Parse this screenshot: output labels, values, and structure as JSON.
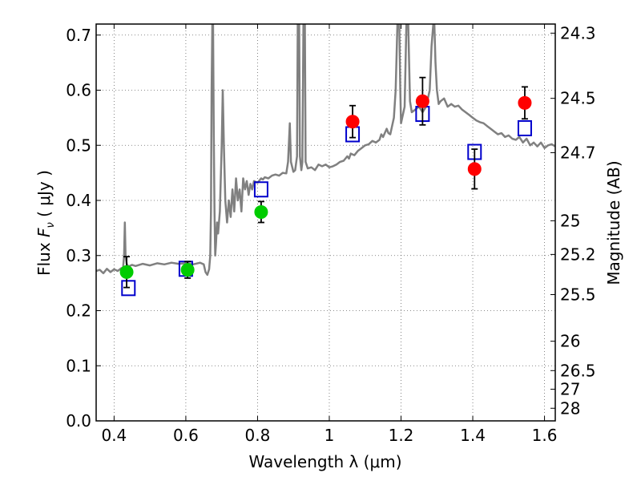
{
  "chart_data": {
    "type": "scatter",
    "xlabel": "Wavelength  λ (μm)",
    "ylabel": "Flux  F_ν  ( μJy )",
    "y2label": "Magnitude (AB)",
    "xlim": [
      0.35,
      1.63
    ],
    "ylim": [
      0.0,
      0.72
    ],
    "grid": true,
    "x_ticks": [
      0.4,
      0.6,
      0.8,
      1.0,
      1.2,
      1.4,
      1.6
    ],
    "x_tick_labels": [
      "0.4",
      "0.6",
      "0.8",
      "1",
      "1.2",
      "1.4",
      "1.6"
    ],
    "y_ticks": [
      0.0,
      0.1,
      0.2,
      0.3,
      0.4,
      0.5,
      0.6,
      0.7
    ],
    "y_tick_labels": [
      "0.0",
      "0.1",
      "0.2",
      "0.3",
      "0.4",
      "0.5",
      "0.6",
      "0.7"
    ],
    "y2_ticks": [
      {
        "flux": 0.7035,
        "label": "24.3"
      },
      {
        "flux": 0.5852,
        "label": "24.5"
      },
      {
        "flux": 0.4866,
        "label": "24.7"
      },
      {
        "flux": 0.3631,
        "label": "25"
      },
      {
        "flux": 0.302,
        "label": "25.2"
      },
      {
        "flux": 0.2291,
        "label": "25.5"
      },
      {
        "flux": 0.1445,
        "label": "26"
      },
      {
        "flux": 0.0912,
        "label": "26.5"
      },
      {
        "flux": 0.0575,
        "label": "27"
      },
      {
        "flux": 0.0229,
        "label": "28"
      }
    ],
    "series": [
      {
        "kind": "spectrum",
        "color": "#808080",
        "points": [
          [
            0.35,
            0.272
          ],
          [
            0.36,
            0.274
          ],
          [
            0.37,
            0.268
          ],
          [
            0.38,
            0.276
          ],
          [
            0.39,
            0.27
          ],
          [
            0.4,
            0.275
          ],
          [
            0.41,
            0.272
          ],
          [
            0.42,
            0.277
          ],
          [
            0.425,
            0.278
          ],
          [
            0.428,
            0.3
          ],
          [
            0.43,
            0.36
          ],
          [
            0.432,
            0.3
          ],
          [
            0.435,
            0.285
          ],
          [
            0.44,
            0.28
          ],
          [
            0.45,
            0.283
          ],
          [
            0.46,
            0.281
          ],
          [
            0.48,
            0.285
          ],
          [
            0.5,
            0.282
          ],
          [
            0.52,
            0.286
          ],
          [
            0.54,
            0.284
          ],
          [
            0.56,
            0.287
          ],
          [
            0.58,
            0.285
          ],
          [
            0.6,
            0.286
          ],
          [
            0.62,
            0.284
          ],
          [
            0.64,
            0.287
          ],
          [
            0.65,
            0.284
          ],
          [
            0.655,
            0.27
          ],
          [
            0.66,
            0.265
          ],
          [
            0.665,
            0.275
          ],
          [
            0.668,
            0.3
          ],
          [
            0.67,
            0.38
          ],
          [
            0.672,
            0.6
          ],
          [
            0.674,
            0.72
          ],
          [
            0.676,
            0.72
          ],
          [
            0.678,
            0.52
          ],
          [
            0.68,
            0.38
          ],
          [
            0.682,
            0.3
          ],
          [
            0.684,
            0.32
          ],
          [
            0.687,
            0.36
          ],
          [
            0.69,
            0.34
          ],
          [
            0.695,
            0.38
          ],
          [
            0.7,
            0.5
          ],
          [
            0.703,
            0.6
          ],
          [
            0.706,
            0.5
          ],
          [
            0.71,
            0.4
          ],
          [
            0.715,
            0.36
          ],
          [
            0.72,
            0.4
          ],
          [
            0.725,
            0.37
          ],
          [
            0.73,
            0.42
          ],
          [
            0.735,
            0.38
          ],
          [
            0.74,
            0.44
          ],
          [
            0.745,
            0.4
          ],
          [
            0.75,
            0.42
          ],
          [
            0.755,
            0.38
          ],
          [
            0.76,
            0.44
          ],
          [
            0.765,
            0.42
          ],
          [
            0.77,
            0.435
          ],
          [
            0.775,
            0.41
          ],
          [
            0.78,
            0.43
          ],
          [
            0.785,
            0.42
          ],
          [
            0.79,
            0.435
          ],
          [
            0.8,
            0.432
          ],
          [
            0.81,
            0.44
          ],
          [
            0.815,
            0.438
          ],
          [
            0.82,
            0.442
          ],
          [
            0.83,
            0.44
          ],
          [
            0.84,
            0.445
          ],
          [
            0.85,
            0.447
          ],
          [
            0.86,
            0.445
          ],
          [
            0.87,
            0.45
          ],
          [
            0.88,
            0.449
          ],
          [
            0.885,
            0.47
          ],
          [
            0.89,
            0.54
          ],
          [
            0.893,
            0.47
          ],
          [
            0.9,
            0.452
          ],
          [
            0.905,
            0.455
          ],
          [
            0.91,
            0.48
          ],
          [
            0.912,
            0.72
          ],
          [
            0.916,
            0.72
          ],
          [
            0.918,
            0.48
          ],
          [
            0.922,
            0.455
          ],
          [
            0.925,
            0.47
          ],
          [
            0.928,
            0.72
          ],
          [
            0.932,
            0.72
          ],
          [
            0.934,
            0.47
          ],
          [
            0.94,
            0.458
          ],
          [
            0.95,
            0.46
          ],
          [
            0.96,
            0.455
          ],
          [
            0.97,
            0.465
          ],
          [
            0.98,
            0.462
          ],
          [
            0.99,
            0.465
          ],
          [
            1.0,
            0.46
          ],
          [
            1.01,
            0.462
          ],
          [
            1.02,
            0.465
          ],
          [
            1.03,
            0.47
          ],
          [
            1.04,
            0.472
          ],
          [
            1.05,
            0.48
          ],
          [
            1.055,
            0.476
          ],
          [
            1.06,
            0.485
          ],
          [
            1.07,
            0.482
          ],
          [
            1.08,
            0.49
          ],
          [
            1.09,
            0.495
          ],
          [
            1.1,
            0.5
          ],
          [
            1.11,
            0.502
          ],
          [
            1.12,
            0.508
          ],
          [
            1.13,
            0.505
          ],
          [
            1.14,
            0.51
          ],
          [
            1.145,
            0.52
          ],
          [
            1.15,
            0.515
          ],
          [
            1.16,
            0.53
          ],
          [
            1.165,
            0.522
          ],
          [
            1.17,
            0.52
          ],
          [
            1.18,
            0.55
          ],
          [
            1.185,
            0.6
          ],
          [
            1.19,
            0.72
          ],
          [
            1.195,
            0.72
          ],
          [
            1.198,
            0.6
          ],
          [
            1.2,
            0.54
          ],
          [
            1.21,
            0.57
          ],
          [
            1.215,
            0.72
          ],
          [
            1.22,
            0.72
          ],
          [
            1.225,
            0.58
          ],
          [
            1.23,
            0.56
          ],
          [
            1.24,
            0.565
          ],
          [
            1.25,
            0.57
          ],
          [
            1.26,
            0.56
          ],
          [
            1.27,
            0.57
          ],
          [
            1.28,
            0.6
          ],
          [
            1.285,
            0.68
          ],
          [
            1.29,
            0.72
          ],
          [
            1.293,
            0.72
          ],
          [
            1.296,
            0.65
          ],
          [
            1.3,
            0.6
          ],
          [
            1.305,
            0.575
          ],
          [
            1.31,
            0.58
          ],
          [
            1.32,
            0.585
          ],
          [
            1.33,
            0.57
          ],
          [
            1.34,
            0.575
          ],
          [
            1.35,
            0.57
          ],
          [
            1.36,
            0.572
          ],
          [
            1.37,
            0.565
          ],
          [
            1.38,
            0.56
          ],
          [
            1.39,
            0.555
          ],
          [
            1.4,
            0.55
          ],
          [
            1.41,
            0.545
          ],
          [
            1.42,
            0.542
          ],
          [
            1.43,
            0.54
          ],
          [
            1.44,
            0.535
          ],
          [
            1.45,
            0.53
          ],
          [
            1.46,
            0.525
          ],
          [
            1.47,
            0.52
          ],
          [
            1.48,
            0.522
          ],
          [
            1.49,
            0.515
          ],
          [
            1.5,
            0.518
          ],
          [
            1.51,
            0.512
          ],
          [
            1.52,
            0.51
          ],
          [
            1.53,
            0.515
          ],
          [
            1.54,
            0.505
          ],
          [
            1.55,
            0.512
          ],
          [
            1.56,
            0.5
          ],
          [
            1.57,
            0.505
          ],
          [
            1.58,
            0.498
          ],
          [
            1.59,
            0.505
          ],
          [
            1.6,
            0.495
          ],
          [
            1.61,
            0.5
          ],
          [
            1.62,
            0.502
          ],
          [
            1.63,
            0.498
          ]
        ]
      },
      {
        "kind": "squares",
        "color": "#0000cc",
        "points": [
          [
            0.44,
            0.241
          ],
          [
            0.6,
            0.276
          ],
          [
            0.81,
            0.42
          ],
          [
            1.065,
            0.52
          ],
          [
            1.26,
            0.557
          ],
          [
            1.405,
            0.488
          ],
          [
            1.545,
            0.531
          ]
        ]
      },
      {
        "kind": "circles",
        "color": "#00cc00",
        "points": [
          {
            "x": 0.435,
            "y": 0.27,
            "err": 0.028
          },
          {
            "x": 0.605,
            "y": 0.274,
            "err": 0.015
          },
          {
            "x": 0.81,
            "y": 0.379,
            "err": 0.019
          }
        ]
      },
      {
        "kind": "circles",
        "color": "#ff0000",
        "points": [
          {
            "x": 1.065,
            "y": 0.543,
            "err": 0.029
          },
          {
            "x": 1.26,
            "y": 0.58,
            "err": 0.043
          },
          {
            "x": 1.405,
            "y": 0.457,
            "err": 0.036
          },
          {
            "x": 1.545,
            "y": 0.577,
            "err": 0.029
          }
        ]
      }
    ]
  }
}
